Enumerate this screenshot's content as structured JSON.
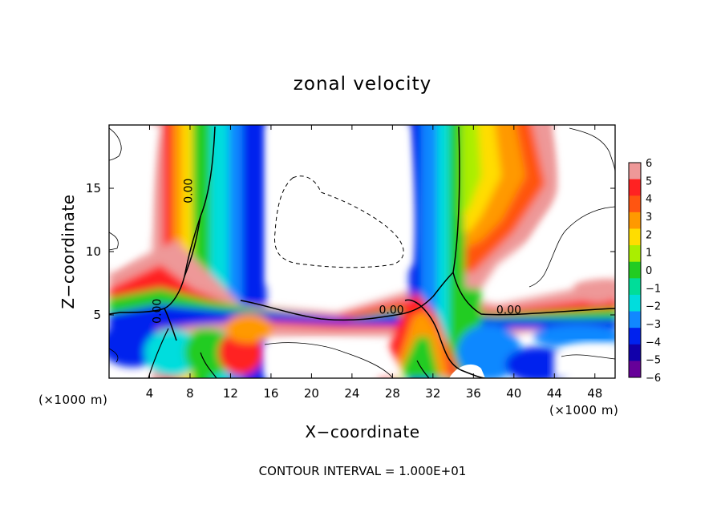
{
  "chart_data": {
    "type": "heatmap",
    "title": "zonal velocity",
    "xlabel": "X−coordinate",
    "ylabel": "Z−coordinate",
    "x_unit_label_left": "(×1000 m)",
    "x_unit_label_right": "(×1000 m)",
    "footer": "CONTOUR INTERVAL = 1.000E+01",
    "xlim": [
      0,
      50
    ],
    "ylim": [
      0,
      20
    ],
    "x_ticks": [
      4,
      8,
      12,
      16,
      20,
      24,
      28,
      32,
      36,
      40,
      44,
      48
    ],
    "x_tick_labels": [
      "4",
      "8",
      "12",
      "16",
      "20",
      "24",
      "28",
      "32",
      "36",
      "40",
      "44",
      "48"
    ],
    "y_ticks": [
      5,
      10,
      15
    ],
    "y_tick_labels": [
      "5",
      "10",
      "15"
    ],
    "colorbar": {
      "range": [
        -6,
        6
      ],
      "tick_labels": [
        "6",
        "5",
        "4",
        "3",
        "2",
        "1",
        "0",
        "−1",
        "−2",
        "−3",
        "−4",
        "−5",
        "−6"
      ],
      "colors": [
        "#ee9898",
        "#ff2222",
        "#ff5511",
        "#ff9900",
        "#ffdd00",
        "#aaee00",
        "#22cc22",
        "#00dd99",
        "#00dddd",
        "#1188ff",
        "#0022ee",
        "#1100aa",
        "#660099"
      ]
    },
    "contour_labels": [
      {
        "text": "0.00",
        "x": 8.2,
        "z": 14.8
      },
      {
        "text": "0.00",
        "x": 5.1,
        "z": 5.3
      },
      {
        "text": "0.00",
        "x": 27.9,
        "z": 5.1
      },
      {
        "text": "0.00",
        "x": 39.5,
        "z": 5.1
      }
    ]
  }
}
